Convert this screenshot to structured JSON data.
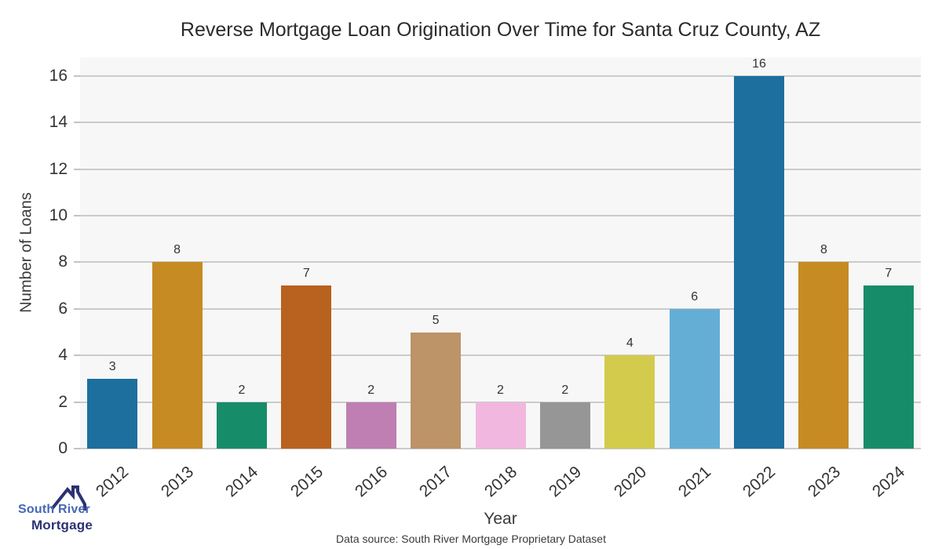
{
  "chart_data": {
    "type": "bar",
    "title": "Reverse Mortgage Loan Origination Over Time for Santa Cruz County, AZ",
    "xlabel": "Year",
    "ylabel": "Number of Loans",
    "categories": [
      "2012",
      "2013",
      "2014",
      "2015",
      "2016",
      "2017",
      "2018",
      "2019",
      "2020",
      "2021",
      "2022",
      "2023",
      "2024"
    ],
    "values": [
      3,
      8,
      2,
      7,
      2,
      5,
      2,
      2,
      4,
      6,
      16,
      8,
      7
    ],
    "bar_colors": [
      "#1d6f9e",
      "#c68b22",
      "#178c69",
      "#b9611f",
      "#bf7fb2",
      "#bd9368",
      "#f1b7de",
      "#969696",
      "#d3cb4b",
      "#64aed6",
      "#1d6f9e",
      "#c68b22",
      "#178c69"
    ],
    "yticks": [
      0,
      2,
      4,
      6,
      8,
      10,
      12,
      14,
      16
    ],
    "ylim": [
      0,
      16.8
    ],
    "grid": true,
    "grid_color": "#cbcbcb",
    "plot_bg": "#f7f7f7",
    "value_labels_shown": true,
    "legend": "none"
  },
  "footer": {
    "source_text": "Data source: South River Mortgage Proprietary Dataset"
  },
  "logo": {
    "line1": "South River",
    "line2": "Mortgage",
    "line1_color": "#4667b3",
    "line2_color": "#2b3272",
    "roof_color": "#2b3272"
  }
}
